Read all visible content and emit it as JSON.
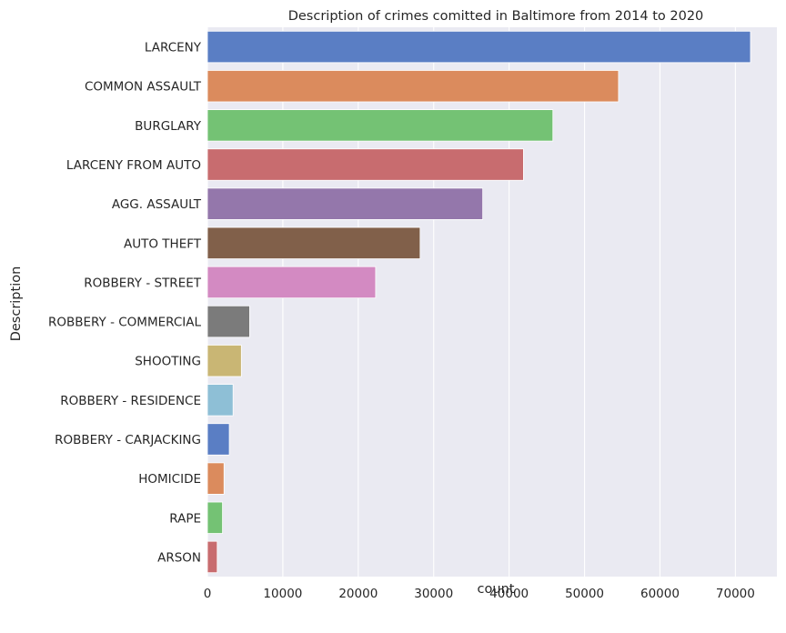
{
  "chart_data": {
    "type": "bar",
    "orientation": "horizontal",
    "title": "Description of crimes comitted in Baltimore from 2014  to 2020",
    "xlabel": "count",
    "ylabel": "Description",
    "xlim": [
      0,
      75500
    ],
    "x_ticks": [
      0,
      10000,
      20000,
      30000,
      40000,
      50000,
      60000,
      70000
    ],
    "x_tick_labels": [
      "0",
      "10000",
      "20000",
      "30000",
      "40000",
      "50000",
      "60000",
      "70000"
    ],
    "grid": true,
    "categories": [
      "LARCENY",
      "COMMON ASSAULT",
      "BURGLARY",
      "LARCENY FROM AUTO",
      "AGG. ASSAULT",
      "AUTO THEFT",
      "ROBBERY - STREET",
      "ROBBERY - COMMERCIAL",
      "SHOOTING",
      "ROBBERY - RESIDENCE",
      "ROBBERY - CARJACKING",
      "HOMICIDE",
      "RAPE",
      "ARSON"
    ],
    "values": [
      72000,
      54500,
      45800,
      41900,
      36500,
      28200,
      22300,
      5600,
      4500,
      3400,
      2900,
      2200,
      2000,
      1300
    ],
    "colors": [
      "#5a7ec4",
      "#db8b5d",
      "#74c274",
      "#c86c6f",
      "#9477ab",
      "#81604a",
      "#d38ac2",
      "#7b7b7b",
      "#c9b674",
      "#8ebfd6",
      "#5a7ec4",
      "#db8b5d",
      "#74c274",
      "#c86c6f"
    ],
    "background_color": "#eaeaf2",
    "grid_color": "#ffffff"
  }
}
